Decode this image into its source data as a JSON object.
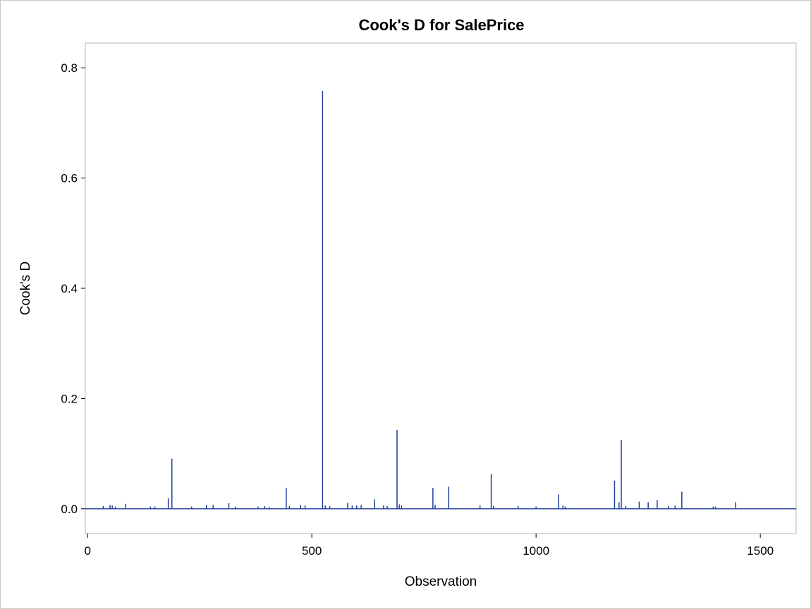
{
  "chart_data": {
    "type": "needle",
    "title": "Cook's D for SalePrice",
    "xlabel": "Observation",
    "ylabel": "Cook's D",
    "xlim": [
      -5,
      1580
    ],
    "ylim": [
      -0.045,
      0.845
    ],
    "xticks": [
      0,
      500,
      1000,
      1500
    ],
    "xtick_labels": [
      "0",
      "500",
      "1000",
      "1500"
    ],
    "yticks": [
      0.0,
      0.2,
      0.4,
      0.6,
      0.8
    ],
    "ytick_labels": [
      "0.0",
      "0.2",
      "0.4",
      "0.6",
      "0.8"
    ],
    "grid": false,
    "baseline": 0,
    "series": [
      {
        "x": [
          35,
          50,
          55,
          62,
          85,
          140,
          150,
          180,
          188,
          232,
          265,
          280,
          315,
          330,
          380,
          395,
          405,
          443,
          450,
          475,
          485,
          524,
          530,
          540,
          580,
          590,
          600,
          610,
          640,
          660,
          668,
          690,
          695,
          700,
          770,
          775,
          805,
          875,
          900,
          905,
          960,
          1000,
          1050,
          1060,
          1065,
          1175,
          1185,
          1190,
          1200,
          1230,
          1250,
          1270,
          1295,
          1310,
          1325,
          1395,
          1400,
          1445
        ],
        "values": [
          0.005,
          0.007,
          0.006,
          0.004,
          0.009,
          0.004,
          0.004,
          0.019,
          0.091,
          0.004,
          0.007,
          0.007,
          0.01,
          0.004,
          0.004,
          0.005,
          0.003,
          0.038,
          0.005,
          0.007,
          0.006,
          0.758,
          0.006,
          0.005,
          0.011,
          0.006,
          0.006,
          0.007,
          0.017,
          0.006,
          0.005,
          0.143,
          0.008,
          0.006,
          0.038,
          0.007,
          0.04,
          0.006,
          0.063,
          0.005,
          0.005,
          0.004,
          0.026,
          0.006,
          0.004,
          0.051,
          0.012,
          0.125,
          0.005,
          0.013,
          0.012,
          0.016,
          0.005,
          0.006,
          0.031,
          0.004,
          0.004,
          0.012
        ],
        "color": "#1f3f9b"
      }
    ]
  }
}
